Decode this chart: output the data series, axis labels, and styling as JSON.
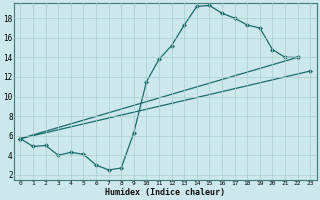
{
  "title": "",
  "xlabel": "Humidex (Indice chaleur)",
  "background_color": "#cce8ec",
  "grid_color": "#aacccc",
  "line_color": "#1a6b6b",
  "xlim": [
    -0.5,
    23.5
  ],
  "ylim": [
    1.5,
    19.5
  ],
  "xticks": [
    0,
    1,
    2,
    3,
    4,
    5,
    6,
    7,
    8,
    9,
    10,
    11,
    12,
    13,
    14,
    15,
    16,
    17,
    18,
    19,
    20,
    21,
    22,
    23
  ],
  "yticks": [
    2,
    4,
    6,
    8,
    10,
    12,
    14,
    16,
    18
  ],
  "line1_x": [
    0,
    1,
    2,
    3,
    4,
    5,
    6,
    7,
    8,
    9,
    10,
    11,
    12,
    13,
    14,
    15,
    16,
    17,
    18,
    19,
    20,
    21,
    22
  ],
  "line1_y": [
    5.7,
    4.9,
    5.0,
    4.0,
    4.3,
    4.1,
    3.0,
    2.5,
    2.7,
    6.3,
    11.5,
    13.8,
    15.2,
    17.3,
    19.2,
    19.3,
    18.5,
    18.0,
    17.3,
    17.0,
    14.8,
    14.0,
    14.0
  ],
  "line2_x": [
    0,
    23
  ],
  "line2_y": [
    5.7,
    12.6
  ],
  "line3_x": [
    0,
    22
  ],
  "line3_y": [
    5.7,
    14.0
  ]
}
